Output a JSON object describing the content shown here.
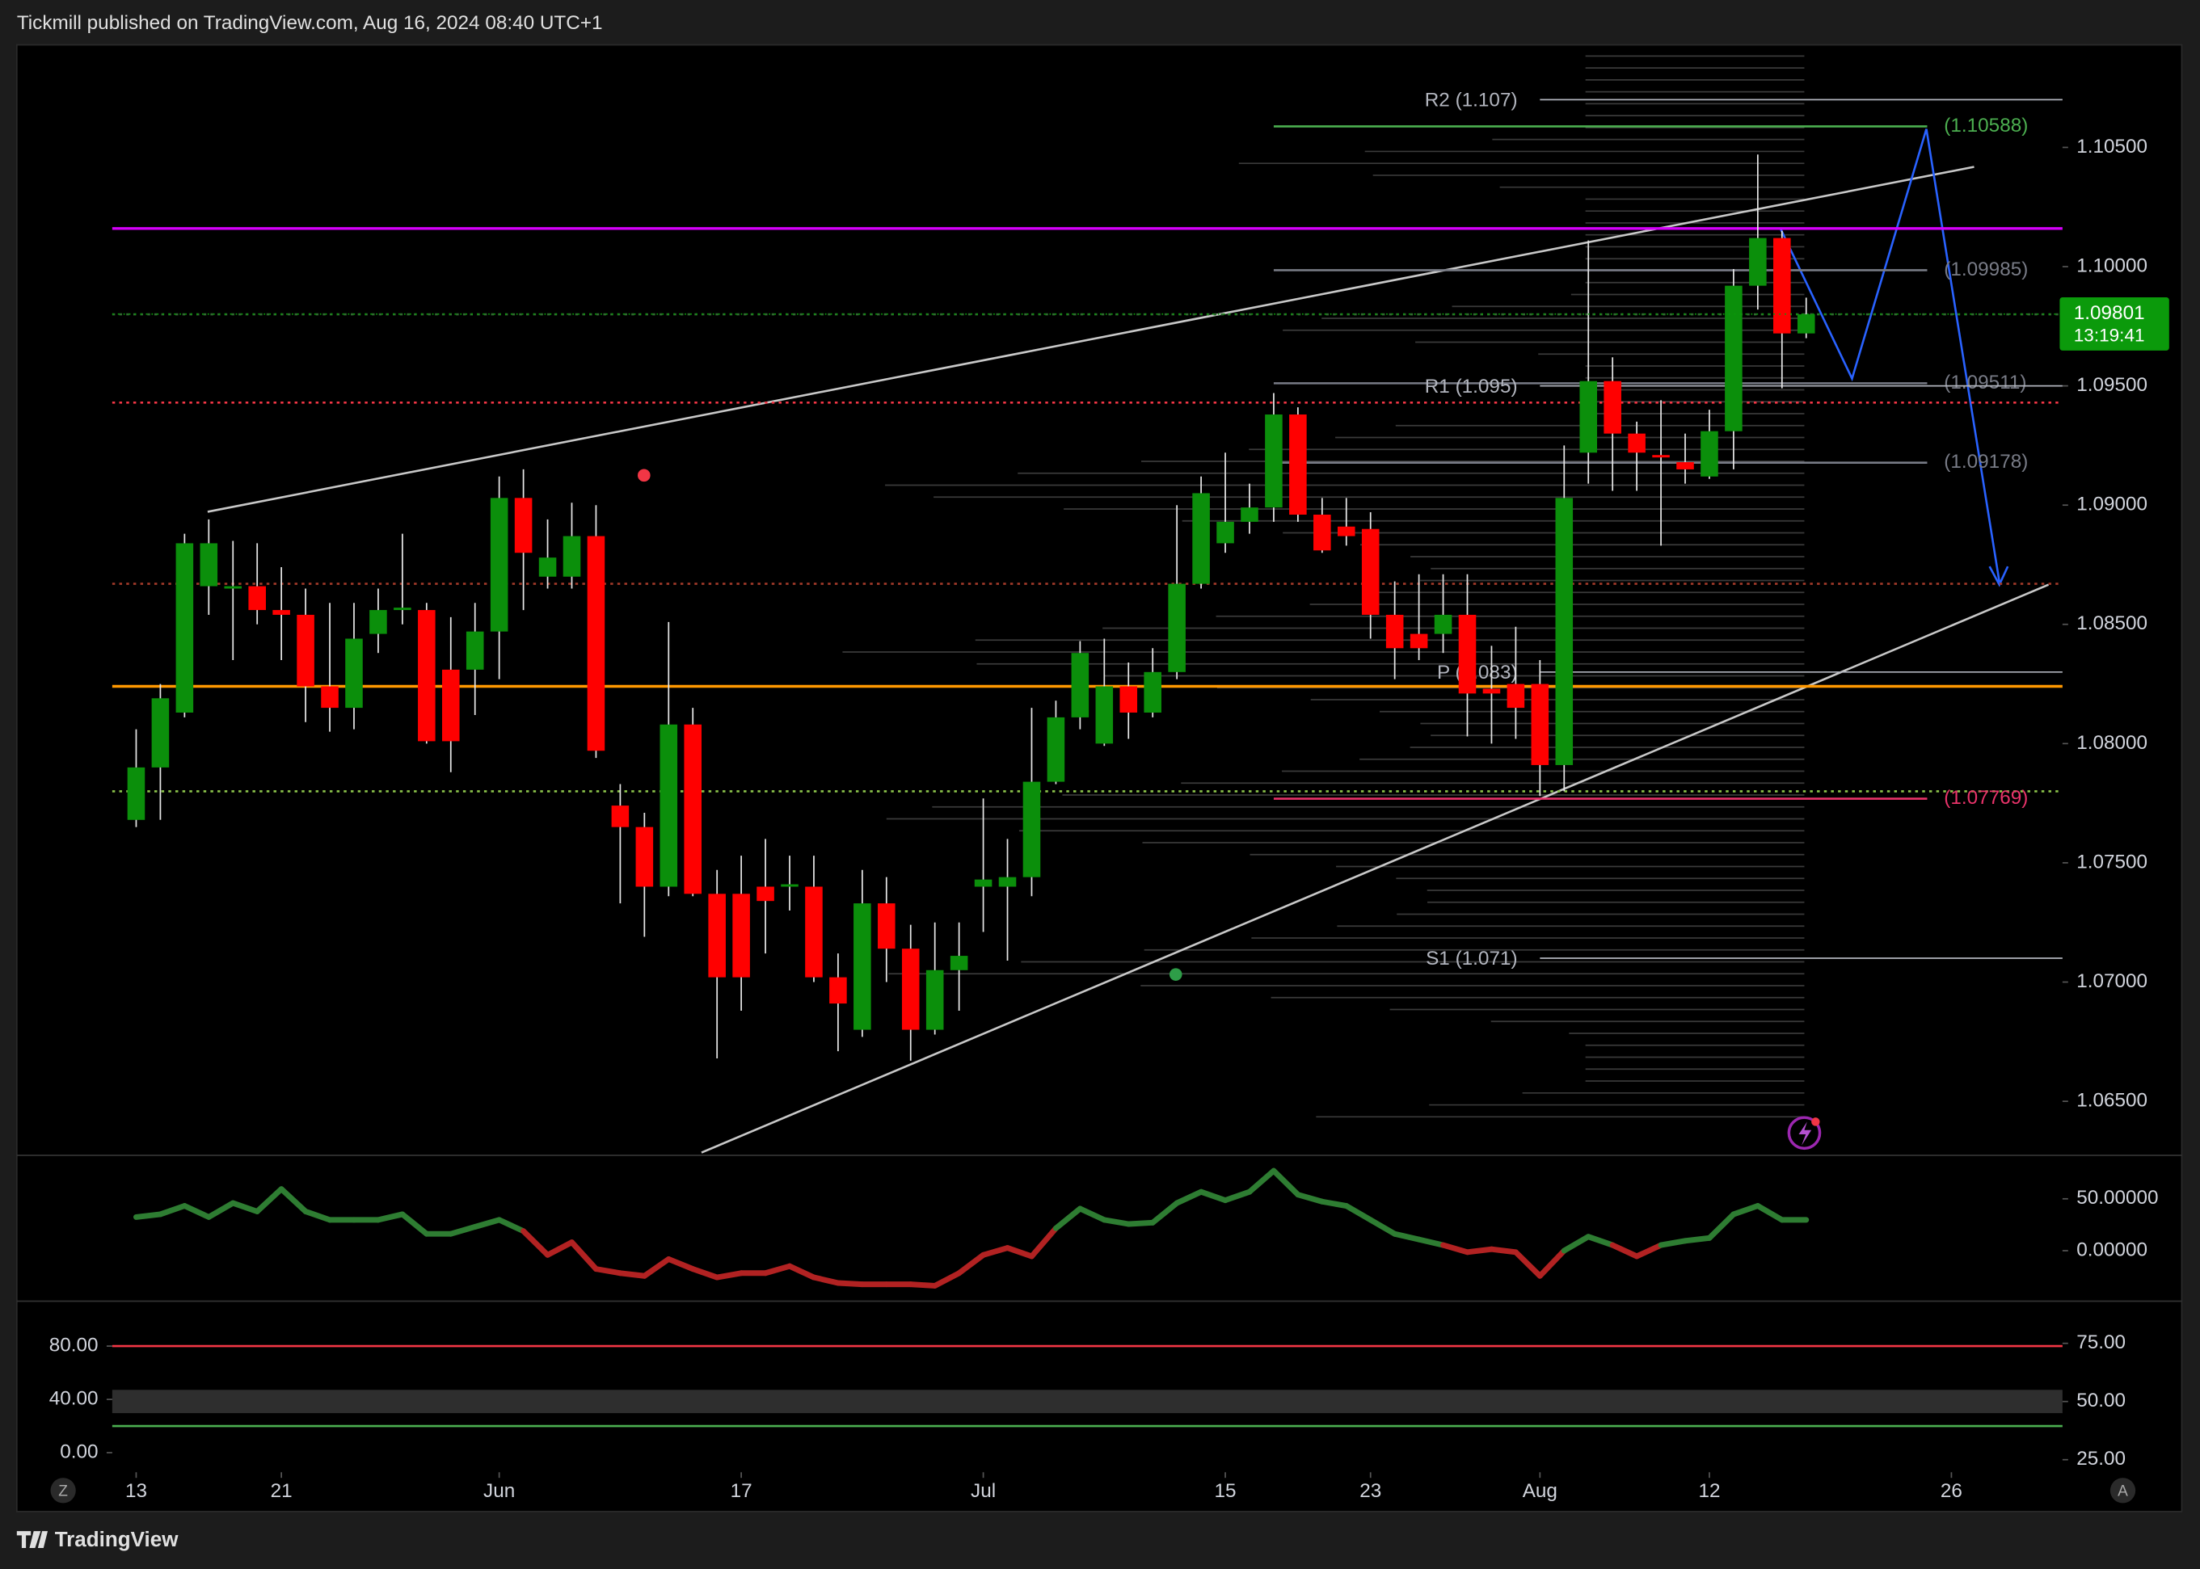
{
  "header": {
    "text": "Tickmill published on TradingView.com, Aug 16, 2024 08:40 UTC+1"
  },
  "footer": {
    "brand": "TradingView",
    "left_button": "Z",
    "right_button": "A"
  },
  "chart_data": {
    "type": "candlestick",
    "open": [
      1.0768,
      1.079,
      1.0813,
      1.0866,
      1.0865,
      1.0866,
      1.0856,
      1.0854,
      1.0824,
      1.0815,
      1.0846,
      1.0856,
      1.0856,
      1.0831,
      1.0831,
      1.0847,
      1.0903,
      1.087,
      1.087,
      1.0887,
      1.0774,
      1.0765,
      1.074,
      1.0808,
      1.0737,
      1.0737,
      1.074,
      1.074,
      1.074,
      1.0702,
      1.068,
      1.0733,
      1.0714,
      1.068,
      1.0705,
      1.074,
      1.074,
      1.0744,
      1.0784,
      1.0811,
      1.08,
      1.0824,
      1.0813,
      1.083,
      1.0867,
      1.0884,
      1.0893,
      1.0899,
      1.0938,
      1.0896,
      1.0891,
      1.089,
      1.0854,
      1.0846,
      1.0846,
      1.0854,
      1.0823,
      1.0825,
      1.0825,
      1.0791,
      1.0922,
      1.0952,
      1.093,
      1.0921,
      1.0918,
      1.0912,
      1.0931,
      1.0992,
      1.1012,
      1.0972
    ],
    "high": [
      1.0806,
      1.0825,
      1.0888,
      1.0894,
      1.0885,
      1.0884,
      1.0874,
      1.0865,
      1.0859,
      1.0859,
      1.0865,
      1.0888,
      1.0859,
      1.0853,
      1.0859,
      1.0912,
      1.0915,
      1.0894,
      1.0901,
      1.09,
      1.0783,
      1.0771,
      1.0851,
      1.0815,
      1.0747,
      1.0753,
      1.076,
      1.0753,
      1.0753,
      1.0712,
      1.0747,
      1.0744,
      1.0724,
      1.0725,
      1.0725,
      1.0777,
      1.076,
      1.0815,
      1.0818,
      1.0843,
      1.0844,
      1.0834,
      1.084,
      1.09,
      1.0912,
      1.0922,
      1.0909,
      1.0947,
      1.0941,
      1.0903,
      1.0903,
      1.0897,
      1.0868,
      1.0871,
      1.0871,
      1.0871,
      1.0841,
      1.0849,
      1.0835,
      1.0925,
      1.1011,
      1.0962,
      1.0935,
      1.0944,
      1.093,
      1.094,
      1.0999,
      1.1047,
      1.1015,
      1.0987
    ],
    "low": [
      1.0765,
      1.0768,
      1.0811,
      1.0854,
      1.0835,
      1.085,
      1.0835,
      1.0809,
      1.0805,
      1.0806,
      1.0838,
      1.085,
      1.08,
      1.0788,
      1.0812,
      1.0827,
      1.0856,
      1.0865,
      1.0865,
      1.0794,
      1.0733,
      1.0719,
      1.0736,
      1.0736,
      1.0668,
      1.0688,
      1.0712,
      1.073,
      1.07,
      1.0671,
      1.0677,
      1.07,
      1.0667,
      1.0678,
      1.0688,
      1.0721,
      1.0709,
      1.0736,
      1.0783,
      1.0806,
      1.0799,
      1.0802,
      1.0811,
      1.0827,
      1.0865,
      1.088,
      1.0888,
      1.0893,
      1.0893,
      1.088,
      1.0883,
      1.0844,
      1.0827,
      1.0835,
      1.0838,
      1.0803,
      1.08,
      1.0802,
      1.0778,
      1.078,
      1.0909,
      1.0906,
      1.0906,
      1.0883,
      1.0909,
      1.0911,
      1.0915,
      1.0982,
      1.0949,
      1.097
    ],
    "close": [
      1.079,
      1.0819,
      1.0884,
      1.0884,
      1.0866,
      1.0856,
      1.0854,
      1.0824,
      1.0815,
      1.0844,
      1.0856,
      1.0857,
      1.0801,
      1.0801,
      1.0847,
      1.0903,
      1.088,
      1.0878,
      1.0887,
      1.0797,
      1.0765,
      1.074,
      1.0808,
      1.0737,
      1.0702,
      1.0702,
      1.0734,
      1.0741,
      1.0702,
      1.0691,
      1.0733,
      1.0714,
      1.068,
      1.0705,
      1.0711,
      1.0743,
      1.0744,
      1.0784,
      1.0811,
      1.0838,
      1.0824,
      1.0813,
      1.083,
      1.0867,
      1.0905,
      1.0893,
      1.0899,
      1.0938,
      1.0896,
      1.0881,
      1.0887,
      1.0854,
      1.084,
      1.084,
      1.0854,
      1.0821,
      1.0821,
      1.0815,
      1.0791,
      1.0903,
      1.0952,
      1.093,
      1.0922,
      1.092,
      1.0915,
      1.0931,
      1.0992,
      1.1012,
      1.0972,
      1.098
    ],
    "up_color": "#0b8f0b",
    "down_color": "#ff0000",
    "wick_color": "#e6e6e6",
    "xlim": [
      -4.93,
      79.59
    ],
    "xticks": [
      {
        "value": 0,
        "label": "13"
      },
      {
        "value": 6,
        "label": "21"
      },
      {
        "value": 15,
        "label": "Jun"
      },
      {
        "value": 25,
        "label": "17"
      },
      {
        "value": 35,
        "label": "Jul"
      },
      {
        "value": 45,
        "label": "15"
      },
      {
        "value": 51,
        "label": "23"
      },
      {
        "value": 58,
        "label": "Aug"
      },
      {
        "value": 65,
        "label": "12"
      },
      {
        "value": 75,
        "label": "26"
      }
    ],
    "ylim": [
      1.06285,
      1.1093
    ],
    "yticks": [
      {
        "value": 1.065,
        "label": "1.06500"
      },
      {
        "value": 1.07,
        "label": "1.07000"
      },
      {
        "value": 1.075,
        "label": "1.07500"
      },
      {
        "value": 1.08,
        "label": "1.08000"
      },
      {
        "value": 1.085,
        "label": "1.08500"
      },
      {
        "value": 1.09,
        "label": "1.09000"
      },
      {
        "value": 1.095,
        "label": "1.09500"
      },
      {
        "value": 1.1,
        "label": "1.10000"
      },
      {
        "value": 1.105,
        "label": "1.10500"
      }
    ],
    "last_price": 1.09801,
    "countdown": "13:19:41",
    "last_color": "#0b9a0b",
    "pivots": [
      {
        "label": "R2 (1.107)",
        "value": 1.107
      },
      {
        "label": "R1 (1.095)",
        "value": 1.095
      },
      {
        "label": "P (1.083)",
        "value": 1.083
      },
      {
        "label": "S1 (1.071)",
        "value": 1.071
      }
    ],
    "pivot_color": "#b2b5be",
    "retracements": [
      {
        "value": 1.10588,
        "label": "(1.10588)",
        "color": "#4caf50"
      },
      {
        "value": 1.09985,
        "label": "(1.09985)",
        "color": "#787b86"
      },
      {
        "value": 1.09511,
        "label": "(1.09511)",
        "color": "#787b86"
      },
      {
        "value": 1.09178,
        "label": "(1.09178)",
        "color": "#787b86"
      },
      {
        "value": 1.07769,
        "label": "(1.07769)",
        "color": "#e8336a"
      }
    ],
    "lines": [
      {
        "value": 1.0824,
        "color": "#ff9800",
        "style": "solid"
      },
      {
        "value": 1.0943,
        "color": "#f23645",
        "style": "dotted"
      },
      {
        "value": 1.078,
        "color": "#8bc34a",
        "style": "dotted"
      },
      {
        "value": 1.1016,
        "color": "#d500f9",
        "style": "solid"
      },
      {
        "value": 1.0867,
        "color": "#a33a2a",
        "style": "dotted"
      },
      {
        "value": 1.098,
        "color": "#2e6b2e",
        "style": "dotted"
      }
    ],
    "momentum": {
      "type": "line",
      "values": [
        32.4,
        35.1,
        43.2,
        32.4,
        45.9,
        37.8,
        59.4,
        37.8,
        29.7,
        29.7,
        29.7,
        35.1,
        16.2,
        16.2,
        23.0,
        29.7,
        18.9,
        -4.1,
        8.1,
        -17.6,
        -21.6,
        -24.3,
        -8.1,
        -17.6,
        -25.7,
        -21.6,
        -21.6,
        -14.9,
        -25.7,
        -31.1,
        -32.4,
        -32.4,
        -32.4,
        -33.8,
        -21.6,
        -4.1,
        2.7,
        -5.4,
        21.6,
        40.5,
        29.7,
        25.7,
        27.0,
        45.9,
        56.7,
        48.6,
        56.7,
        77.0,
        54.0,
        47.3,
        43.2,
        29.7,
        16.2,
        10.8,
        5.4,
        -1.4,
        1.4,
        -1.4,
        -24.3,
        0,
        13.5,
        5.4,
        -5.4,
        5.4,
        9.5,
        12.2,
        35.1,
        43.2,
        29.7,
        29.7
      ],
      "up_color": "#2e7d32",
      "down_color": "#b22222",
      "ylim": [
        -44.6,
        90.5
      ],
      "yticks": [
        {
          "value": 50,
          "label": "50.00000"
        },
        {
          "value": 0,
          "label": "0.00000"
        }
      ]
    },
    "oscillator": {
      "type": "bands",
      "ylim": [
        -14.7,
        111.6
      ],
      "yticks": [
        {
          "value": 80,
          "label": "80.00"
        },
        {
          "value": 40,
          "label": "40.00"
        },
        {
          "value": 0,
          "label": "0.00"
        }
      ],
      "y2lim": [
        19.6,
        91.9
      ],
      "y2ticks": [
        {
          "value": 75,
          "label": "75.00"
        },
        {
          "value": 50,
          "label": "50.00"
        },
        {
          "value": 25,
          "label": "25.00"
        }
      ],
      "levels": [
        {
          "value": 80,
          "color": "#f23645"
        },
        {
          "value": 20,
          "color": "#4caf50"
        }
      ],
      "band": [
        45,
        55
      ],
      "band_color": "#3a3a3a"
    }
  }
}
